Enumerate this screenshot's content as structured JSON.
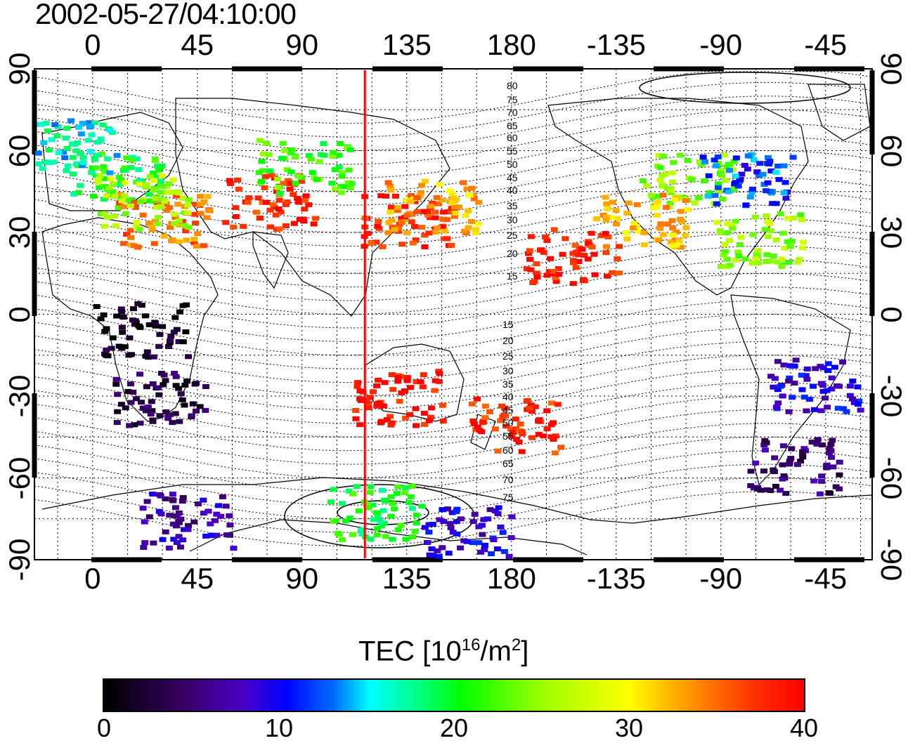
{
  "title": "2002-05-27/04:10:00",
  "axes": {
    "top_ticks": [
      "0",
      "45",
      "90",
      "135",
      "180",
      "-135",
      "-90",
      "-45"
    ],
    "bottom_ticks": [
      "0",
      "45",
      "90",
      "135",
      "180",
      "-135",
      "-90",
      "-45"
    ],
    "left_ticks": [
      "90",
      "60",
      "30",
      "0",
      "-30",
      "-60",
      "-90"
    ],
    "right_ticks": [
      "90",
      "60",
      "30",
      "0",
      "-30",
      "-60",
      "-90"
    ]
  },
  "contour_labels_north": [
    "80",
    "75",
    "70",
    "65",
    "60",
    "55",
    "50",
    "45",
    "40",
    "35",
    "30",
    "25",
    "20",
    "15"
  ],
  "contour_labels_south": [
    "15",
    "20",
    "25",
    "30",
    "35",
    "40",
    "45",
    "50",
    "55",
    "60",
    "65",
    "70",
    "75"
  ],
  "colorbar": {
    "label_main": "TEC  [10",
    "label_sup1": "16",
    "label_mid": "/m",
    "label_sup2": "2",
    "label_end": "]",
    "ticks": [
      "0",
      "10",
      "20",
      "30",
      "40"
    ],
    "range": [
      0,
      40
    ]
  },
  "map": {
    "lon_range": [
      -25,
      335
    ],
    "lat_range": [
      -90,
      90
    ],
    "terminator_lon": 117,
    "terminator_color": "#ff0000"
  },
  "tec_clusters": [
    {
      "lon": 10,
      "lat": 50,
      "tec": 20
    },
    {
      "lon": -10,
      "lat": 62,
      "tec": 16
    },
    {
      "lon": 30,
      "lat": 35,
      "tec": 35
    },
    {
      "lon": 20,
      "lat": 42,
      "tec": 26
    },
    {
      "lon": 135,
      "lat": 35,
      "tec": 38
    },
    {
      "lon": 145,
      "lat": 40,
      "tec": 33
    },
    {
      "lon": 75,
      "lat": 42,
      "tec": 38
    },
    {
      "lon": 90,
      "lat": 55,
      "tec": 22
    },
    {
      "lon": 255,
      "lat": 50,
      "tec": 24
    },
    {
      "lon": 235,
      "lat": 35,
      "tec": 32
    },
    {
      "lon": 280,
      "lat": 50,
      "tec": 12
    },
    {
      "lon": 285,
      "lat": 28,
      "tec": 25
    },
    {
      "lon": 205,
      "lat": 22,
      "tec": 38
    },
    {
      "lon": 180,
      "lat": -40,
      "tec": 38
    },
    {
      "lon": 130,
      "lat": -30,
      "tec": 39
    },
    {
      "lon": 20,
      "lat": -5,
      "tec": 1
    },
    {
      "lon": 28,
      "lat": -30,
      "tec": 3
    },
    {
      "lon": 310,
      "lat": -25,
      "tec": 9
    },
    {
      "lon": 300,
      "lat": -55,
      "tec": 5
    },
    {
      "lon": 120,
      "lat": -72,
      "tec": 20
    },
    {
      "lon": 160,
      "lat": -80,
      "tec": 9
    },
    {
      "lon": 40,
      "lat": -75,
      "tec": 7
    }
  ]
}
